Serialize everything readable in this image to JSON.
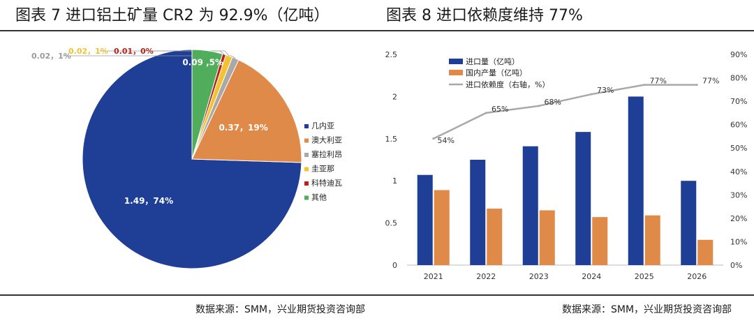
{
  "titles": {
    "left": "图表 7 进口铝土矿量 CR2 为 92.9%（亿吨）",
    "right": "图表 8 进口依赖度维持 77%"
  },
  "sources": {
    "left": "数据来源：SMM，兴业期货投资咨询部",
    "right": "数据来源：SMM，兴业期货投资咨询部"
  },
  "colors": {
    "blue": "#1f3f96",
    "orange": "#e08a4a",
    "gray": "#a8a8a8",
    "yellow": "#f2c230",
    "red": "#b5241c",
    "green": "#4fad5b"
  },
  "chart_data": [
    {
      "type": "pie",
      "legend_position": "right",
      "slices": [
        {
          "name": "几内亚",
          "value": 1.49,
          "label": "1.49，74%",
          "color": "#1f3f96"
        },
        {
          "name": "澳大利亚",
          "value": 0.37,
          "label": "0.37，19%",
          "color": "#e08a4a"
        },
        {
          "name": "塞拉利昂",
          "value": 0.02,
          "label": "0.02，1%",
          "color": "#a8a8a8"
        },
        {
          "name": "圭亚那",
          "value": 0.02,
          "label": "0.02，1%",
          "color": "#f2c230"
        },
        {
          "name": "科特迪瓦",
          "value": 0.01,
          "label": "0.01，0%",
          "color": "#b5241c"
        },
        {
          "name": "其他",
          "value": 0.09,
          "label": "0.09，5%",
          "color": "#4fad5b"
        }
      ]
    },
    {
      "type": "bar",
      "categories": [
        "2021",
        "2022",
        "2023",
        "2024",
        "2025",
        "2026"
      ],
      "series": [
        {
          "name": "进口量（亿吨）",
          "kind": "bar",
          "axis": "left",
          "color": "#1f3f96",
          "values": [
            1.07,
            1.25,
            1.41,
            1.58,
            2.0,
            1.0
          ]
        },
        {
          "name": "国内产量（亿吨）",
          "kind": "bar",
          "axis": "left",
          "color": "#e08a4a",
          "values": [
            0.89,
            0.67,
            0.65,
            0.57,
            0.59,
            0.3
          ]
        },
        {
          "name": "进口依赖度（右轴，%）",
          "kind": "line",
          "axis": "right",
          "color": "#a8a8a8",
          "values": [
            54,
            65,
            68,
            73,
            77,
            77
          ],
          "labels": [
            "54%",
            "65%",
            "68%",
            "73%",
            "77%",
            "77%"
          ]
        }
      ],
      "y_left": {
        "min": 0,
        "max": 2.5,
        "ticks": [
          "0",
          "0.5",
          "1",
          "1.5",
          "2",
          "2.5"
        ]
      },
      "y_right": {
        "min": 0,
        "max": 90,
        "ticks": [
          "0%",
          "10%",
          "20%",
          "30%",
          "40%",
          "50%",
          "60%",
          "70%",
          "80%",
          "90%"
        ]
      },
      "legend_position": "top-left",
      "grid": false
    }
  ]
}
